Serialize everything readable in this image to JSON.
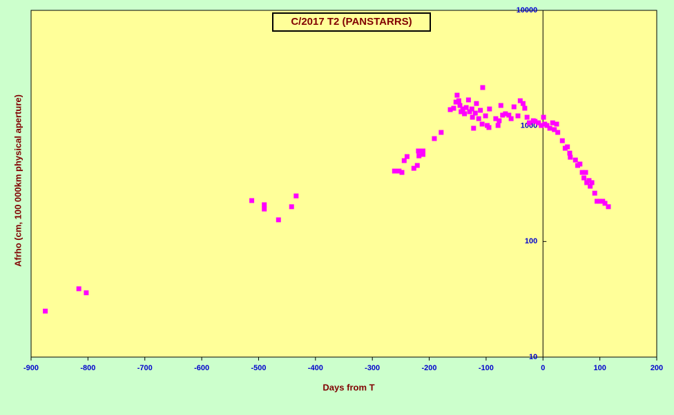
{
  "chart_data": {
    "type": "scatter",
    "title": "C/2017 T2 (PANSTARRS)",
    "x_label": "Days from T",
    "y_label": "Afrho (cm, 100 000km physical aperture)",
    "y_scale": "log",
    "color": "#ff00ff",
    "xlim": [
      -900,
      200
    ],
    "ylim": [
      10,
      10000
    ],
    "xticks": [
      -900,
      -800,
      -700,
      -600,
      -500,
      -400,
      -300,
      -200,
      -100,
      0,
      100,
      200
    ],
    "yticks": [
      10,
      100,
      1000,
      10000
    ],
    "x": [
      -875,
      -816,
      -803,
      -512,
      -490,
      -490,
      -465,
      -442,
      -434,
      -261,
      -253,
      -248,
      -244,
      -239,
      -227,
      -221,
      -219,
      -218,
      -211,
      -211,
      -191,
      -179,
      -163,
      -157,
      -153,
      -151,
      -148,
      -146,
      -144,
      -141,
      -138,
      -135,
      -131,
      -129,
      -125,
      -124,
      -122,
      -119,
      -117,
      -113,
      -110,
      -107,
      -106,
      -101,
      -98,
      -95,
      -94,
      -83,
      -79,
      -77,
      -74,
      -71,
      -66,
      -60,
      -56,
      -51,
      -44,
      -40,
      -35,
      -32,
      -28,
      -24,
      -17,
      -14,
      -8,
      -3,
      1,
      3,
      7,
      12,
      17,
      20,
      24,
      26,
      34,
      39,
      43,
      47,
      48,
      57,
      61,
      65,
      69,
      72,
      75,
      77,
      81,
      83,
      86,
      91,
      95,
      99,
      105,
      109,
      115
    ],
    "values": [
      25,
      39,
      36,
      226,
      208,
      191,
      154,
      200,
      248,
      407,
      407,
      396,
      501,
      543,
      430,
      455,
      607,
      551,
      607,
      567,
      777,
      879,
      1383,
      1422,
      1608,
      1845,
      1652,
      1503,
      1327,
      1402,
      1274,
      1442,
      1679,
      1327,
      1402,
      1189,
      955,
      1291,
      1563,
      1156,
      1365,
      1037,
      2148,
      1222,
      1009,
      969,
      1402,
      1156,
      1009,
      1109,
      1503,
      1240,
      1274,
      1240,
      1156,
      1462,
      1222,
      1652,
      1563,
      1422,
      1189,
      1064,
      1109,
      1096,
      1064,
      1009,
      1189,
      1037,
      1009,
      955,
      1064,
      929,
      1037,
      879,
      745,
      641,
      659,
      582,
      536,
      507,
      455,
      468,
      396,
      355,
      396,
      323,
      337,
      301,
      323,
      262,
      223,
      223,
      223,
      214,
      200
    ]
  }
}
